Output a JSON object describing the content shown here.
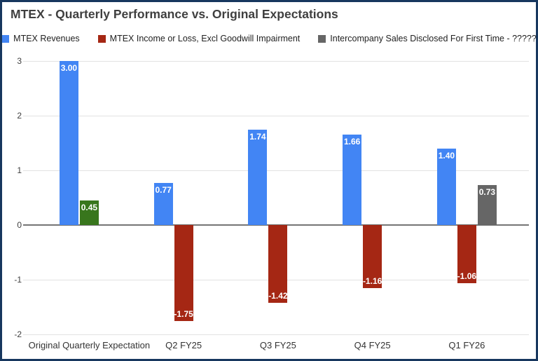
{
  "chart_data": {
    "type": "bar",
    "title": "MTEX - Quarterly Performance vs. Original Expectations",
    "categories": [
      "Original Quarterly Expectation",
      "Q2 FY25",
      "Q3 FY25",
      "Q4 FY25",
      "Q1 FY26"
    ],
    "series": [
      {
        "name": "MTEX Revenues",
        "color": "#4285f4",
        "values": [
          3.0,
          0.77,
          1.74,
          1.66,
          1.4
        ]
      },
      {
        "name": "MTEX Income or Loss, Excl Goodwill Impairment",
        "color": "#a52714",
        "point_colors": [
          "#38761d",
          null,
          null,
          null,
          null
        ],
        "values": [
          0.45,
          -1.75,
          -1.42,
          -1.16,
          -1.06
        ]
      },
      {
        "name": "Intercompany Sales Disclosed For First Time - ?????",
        "color": "#666666",
        "values": [
          null,
          null,
          null,
          null,
          0.73
        ]
      }
    ],
    "value_labels": [
      [
        "3.00",
        "0.77",
        "1.74",
        "1.66",
        "1.40"
      ],
      [
        "0.45",
        "-1.75",
        "-1.42",
        "-1.16",
        "-1.06"
      ],
      [
        null,
        null,
        null,
        null,
        "0.73"
      ]
    ],
    "ylim": [
      -2,
      3
    ],
    "yticks": [
      3,
      2,
      1,
      0,
      -1,
      -2
    ],
    "grid": true,
    "legend_position": "top",
    "colors": {
      "gridline": "#e2e2e2",
      "zero_line": "#757575",
      "frame_border": "#17375e",
      "title_text": "#3f3f3f",
      "axis_text": "#404040",
      "value_label_text": "#ffffff"
    }
  }
}
